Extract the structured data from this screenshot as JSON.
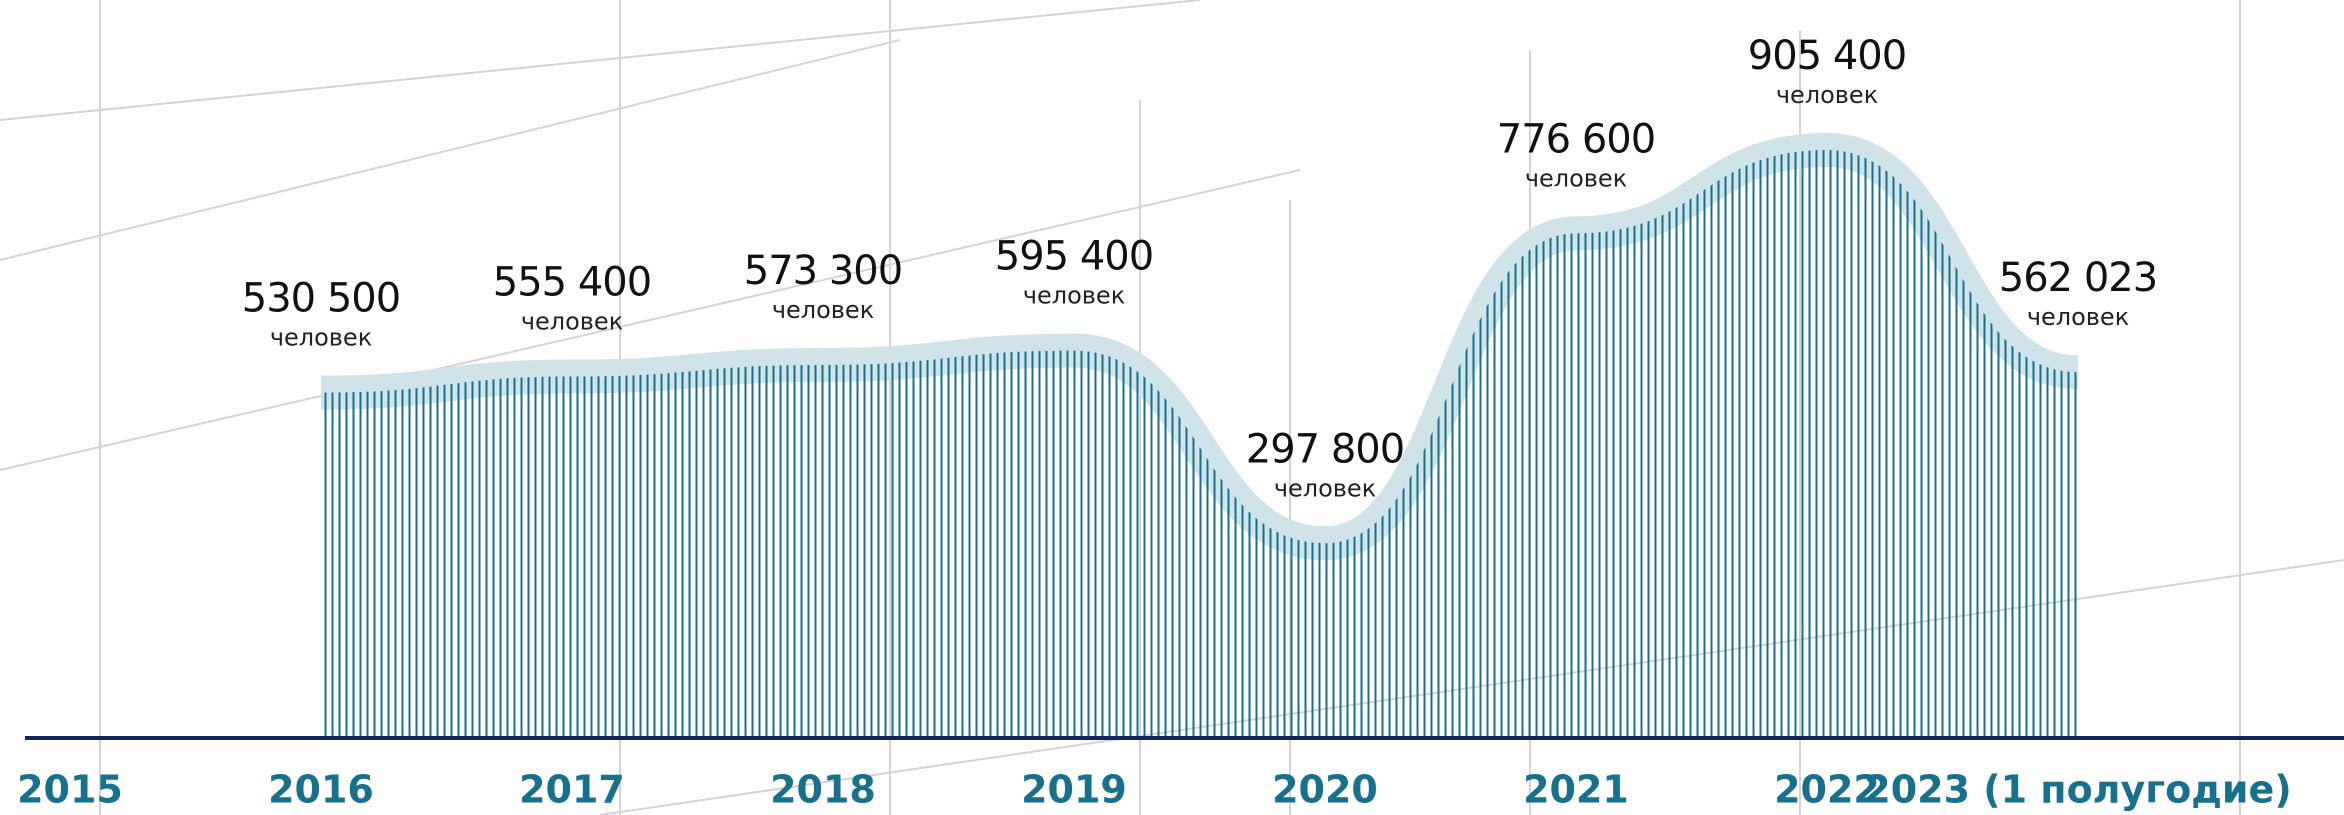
{
  "chart_data": {
    "type": "area",
    "categories": [
      "2015",
      "2016",
      "2017",
      "2018",
      "2019",
      "2020",
      "2021",
      "2022",
      "2023 (1 полугодие)"
    ],
    "values": [
      null,
      530500,
      555400,
      573300,
      595400,
      297800,
      776600,
      905400,
      562023
    ],
    "value_labels": [
      null,
      "530 500",
      "555 400",
      "573 300",
      "595 400",
      "297 800",
      "776 600",
      "905 400",
      "562 023"
    ],
    "unit": "человек",
    "color": "#17708c"
  }
}
